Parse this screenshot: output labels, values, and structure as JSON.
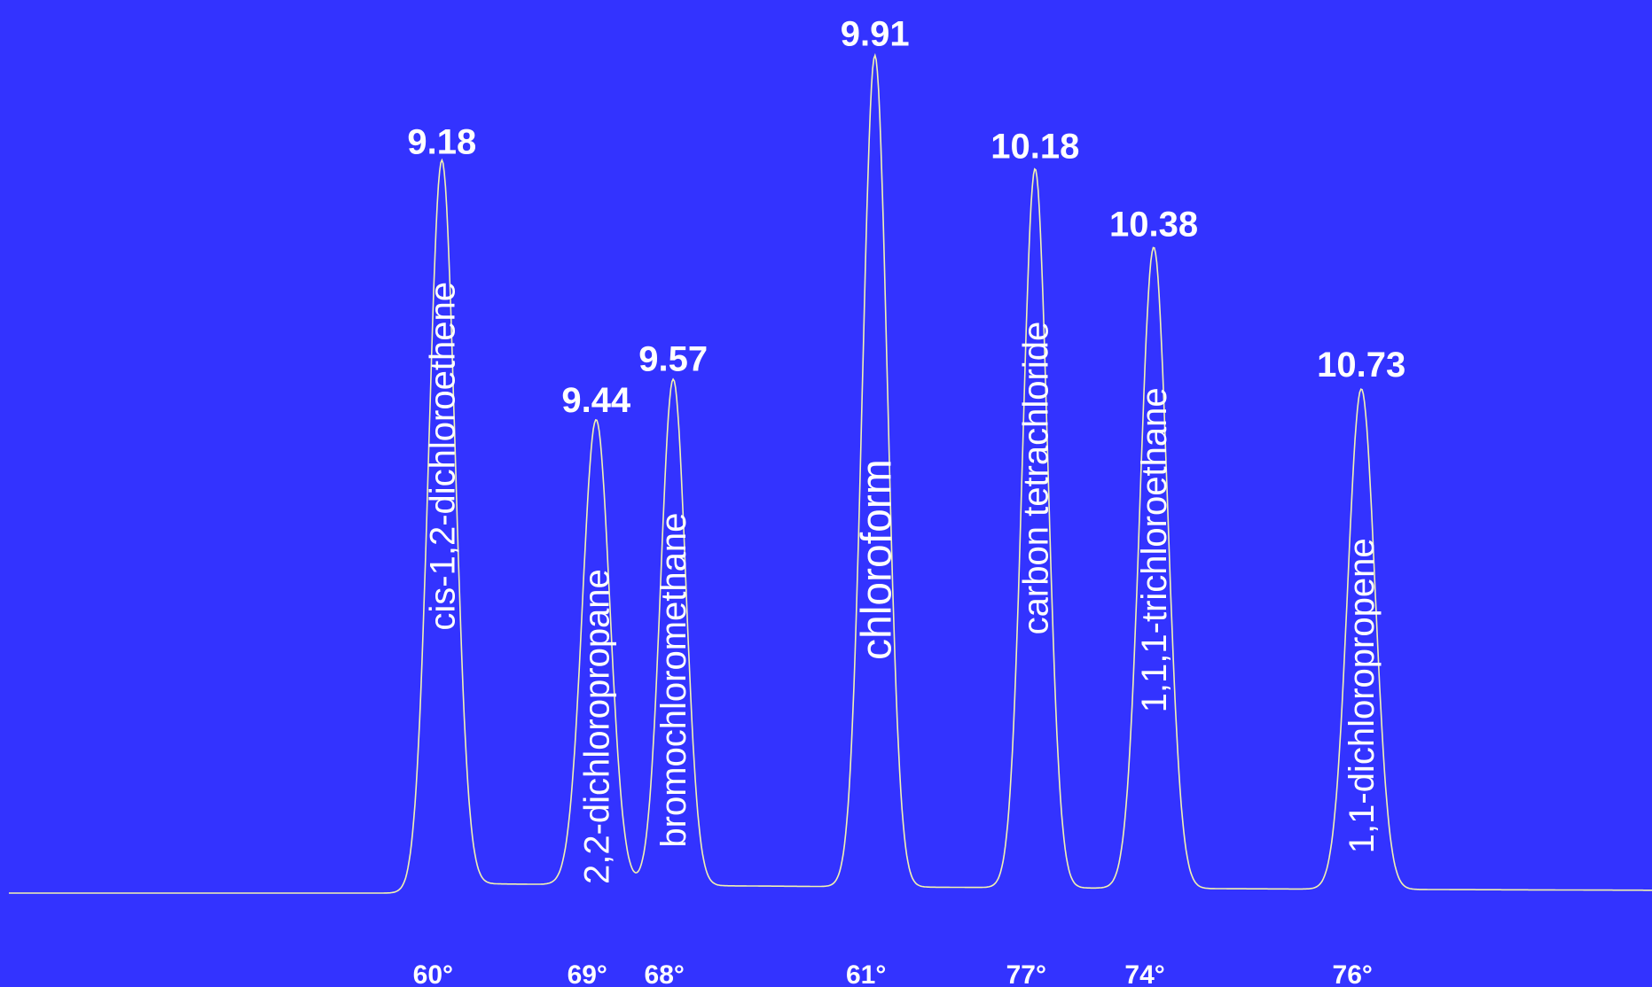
{
  "chart_data": {
    "type": "line",
    "title": "",
    "xlabel": "",
    "ylabel": "",
    "xlim": [
      8.45,
      11.22
    ],
    "ylim": [
      0,
      1.0
    ],
    "grid": false,
    "colors": {
      "background": "#3333ff",
      "trace": "#f2f2b0",
      "text": "#ffffff"
    },
    "peaks": [
      {
        "compound": "cis-1,2-dichloroethene",
        "retention_time": "9.18",
        "rt": 9.18,
        "height": 0.863,
        "width": 0.022,
        "boiling_point": "60°"
      },
      {
        "compound": "2,2-dichloropropane",
        "retention_time": "9.44",
        "rt": 9.44,
        "height": 0.555,
        "width": 0.023,
        "boiling_point": "69°"
      },
      {
        "compound": "bromochloromethane",
        "retention_time": "9.57",
        "rt": 9.57,
        "height": 0.604,
        "width": 0.021,
        "boiling_point": "68°"
      },
      {
        "compound": "chloroform",
        "retention_time": "9.91",
        "rt": 9.91,
        "height": 0.992,
        "width": 0.021,
        "boiling_point": "61°"
      },
      {
        "compound": "carbon tetrachloride",
        "retention_time": "10.18",
        "rt": 10.18,
        "height": 0.858,
        "width": 0.021,
        "boiling_point": "77°"
      },
      {
        "compound": "1,1,1-trichloroethane",
        "retention_time": "10.38",
        "rt": 10.38,
        "height": 0.765,
        "width": 0.023,
        "boiling_point": "74°"
      },
      {
        "compound": "1,1-dichloropropene",
        "retention_time": "10.73",
        "rt": 10.73,
        "height": 0.597,
        "width": 0.023,
        "boiling_point": "76°"
      }
    ]
  }
}
